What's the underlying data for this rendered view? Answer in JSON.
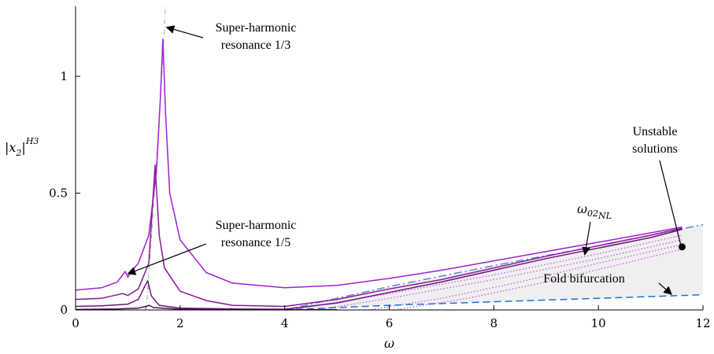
{
  "chart_data": {
    "type": "line",
    "xlabel": "ω",
    "ylabel": {
      "base": "|x",
      "sub": "2",
      "tail": "|",
      "sup": "H3"
    },
    "xlim": [
      0,
      12
    ],
    "ylim": [
      0,
      1.3
    ],
    "xticks": [
      0,
      2,
      4,
      6,
      8,
      10,
      12
    ],
    "yticks": [
      0,
      0.5,
      1
    ],
    "grid": false,
    "colors": {
      "curve1": "#a21fd6",
      "curve2": "#8a169c",
      "curve3": "#6a1578",
      "curve4": "#4a1050",
      "unstable": "#c04fe0",
      "backbone": "#5a8ac4",
      "fold": "#1e6fd9",
      "guide": "#aaaaaa",
      "shade": "#efefef"
    },
    "series": [
      {
        "x": [
          0,
          0.5,
          0.8,
          0.95,
          1.0,
          1.05,
          1.2,
          1.4,
          1.55,
          1.62,
          1.67,
          1.72,
          1.8,
          2.0,
          2.5,
          3.0,
          4.0,
          5.0,
          6.0,
          7.0,
          8.0,
          9.0,
          10.0,
          11.0,
          11.6
        ],
        "values": [
          0.085,
          0.095,
          0.12,
          0.165,
          0.14,
          0.16,
          0.2,
          0.32,
          0.6,
          0.9,
          1.16,
          0.85,
          0.5,
          0.3,
          0.16,
          0.115,
          0.095,
          0.105,
          0.135,
          0.17,
          0.21,
          0.25,
          0.29,
          0.33,
          0.355
        ]
      },
      {
        "x": [
          0,
          0.5,
          0.8,
          0.9,
          1.0,
          1.2,
          1.4,
          1.52,
          1.6,
          1.7,
          2.0,
          2.5,
          3.0,
          4.0,
          5.0,
          6.0,
          7.0,
          8.0,
          9.0,
          10.0,
          11.0,
          11.6
        ],
        "values": [
          0.045,
          0.05,
          0.065,
          0.07,
          0.062,
          0.09,
          0.2,
          0.62,
          0.32,
          0.18,
          0.08,
          0.04,
          0.02,
          0.015,
          0.045,
          0.09,
          0.13,
          0.18,
          0.23,
          0.275,
          0.32,
          0.35
        ]
      },
      {
        "x": [
          0,
          0.5,
          0.8,
          1.0,
          1.2,
          1.32,
          1.38,
          1.45,
          1.6,
          2.0,
          3.0,
          4.0,
          5.0,
          6.0,
          7.0,
          8.0,
          9.0,
          10.0,
          11.0,
          11.6
        ],
        "values": [
          0.015,
          0.018,
          0.022,
          0.025,
          0.045,
          0.1,
          0.125,
          0.06,
          0.02,
          0.008,
          0.004,
          0.003,
          0.03,
          0.075,
          0.12,
          0.17,
          0.22,
          0.265,
          0.31,
          0.345
        ]
      },
      {
        "x": [
          0,
          0.8,
          1.2,
          1.35,
          1.4,
          1.5,
          2.0,
          3.0,
          4.0,
          5.0
        ],
        "values": [
          0.002,
          0.004,
          0.008,
          0.015,
          0.02,
          0.01,
          0.003,
          0.001,
          0.001,
          0.001
        ]
      }
    ],
    "unstable_branches": [
      {
        "x": [
          4.1,
          6,
          8,
          10,
          11.6
        ],
        "values": [
          0.0,
          0.07,
          0.15,
          0.24,
          0.32
        ]
      },
      {
        "x": [
          4.6,
          6,
          8,
          10,
          11.6
        ],
        "values": [
          0.0,
          0.05,
          0.13,
          0.22,
          0.3
        ]
      },
      {
        "x": [
          5.6,
          7,
          8.5,
          10,
          11.6
        ],
        "values": [
          0.0,
          0.05,
          0.12,
          0.2,
          0.28
        ]
      },
      {
        "x": [
          6.1,
          7.5,
          9,
          10.5,
          11.6
        ],
        "values": [
          0.0,
          0.05,
          0.12,
          0.2,
          0.26
        ]
      }
    ],
    "backbone": {
      "x": [
        4.0,
        6,
        8,
        10,
        12
      ],
      "values": [
        0.0,
        0.1,
        0.19,
        0.275,
        0.365
      ]
    },
    "fold": {
      "x": [
        4.0,
        6,
        8,
        10,
        12
      ],
      "values": [
        0.0,
        0.02,
        0.035,
        0.05,
        0.065
      ]
    },
    "guide_1_3": {
      "x": [
        1.35,
        1.45,
        1.55,
        1.65,
        1.72
      ],
      "values": [
        0.0,
        0.3,
        0.65,
        1.0,
        1.3
      ]
    },
    "guide_1_5": {
      "x": [
        1.33,
        1.35,
        1.4
      ],
      "values": [
        0.0,
        0.03,
        0.1
      ]
    },
    "annotations": {
      "sh13": {
        "line1": "Super-harmonic",
        "line2": "resonance 1/3",
        "point": [
          1.68,
          1.21
        ]
      },
      "sh15": {
        "line1": "Super-harmonic",
        "line2": "resonance 1/5",
        "point": [
          0.97,
          0.165
        ]
      },
      "omega_nl": {
        "base": "ω",
        "sub": "02",
        "subsub": "NL",
        "point": [
          9.8,
          0.27
        ]
      },
      "unstable": {
        "line1": "Unstable",
        "line2": "solutions",
        "point": [
          11.6,
          0.27
        ]
      },
      "fold": {
        "label": "Fold bifurcation",
        "point": [
          11.4,
          0.06
        ]
      }
    }
  }
}
